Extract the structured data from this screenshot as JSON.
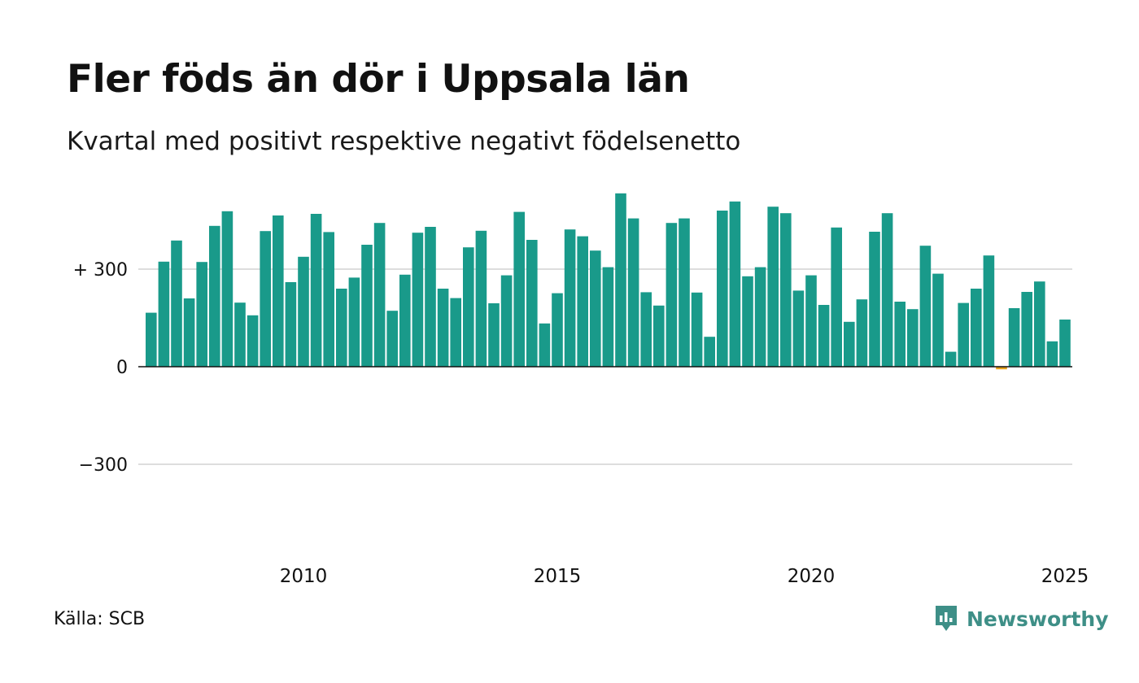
{
  "title": "Fler föds än dör i Uppsala län",
  "subtitle": "Kvartal med positivt respektive negativt födelsenetto",
  "source": "Källa: SCB",
  "brand": {
    "name": "Newsworthy",
    "icon": "newsworthy-logo-icon"
  },
  "colors": {
    "positive": "#199a8a",
    "negative": "#e3a01b",
    "grid": "#dddddd",
    "baseline": "#111111",
    "brand": "#3e8f87"
  },
  "chart_data": {
    "type": "bar",
    "title": "Fler föds än dör i Uppsala län",
    "subtitle": "Kvartal med positivt respektive negativt födelsenetto",
    "xlabel": "",
    "ylabel": "",
    "ylim": [
      -300,
      520
    ],
    "grid": true,
    "start": {
      "year": 2007,
      "quarter": 1
    },
    "yticks": [
      {
        "value": 300,
        "label": "+ 300"
      },
      {
        "value": 0,
        "label": "0"
      },
      {
        "value": -300,
        "label": "−300"
      }
    ],
    "xticks": [
      {
        "year": 2010,
        "label": "2010"
      },
      {
        "year": 2015,
        "label": "2015"
      },
      {
        "year": 2020,
        "label": "2020"
      },
      {
        "year": 2025,
        "label": "2025"
      }
    ],
    "values": [
      166,
      323,
      388,
      210,
      322,
      433,
      478,
      197,
      158,
      417,
      465,
      260,
      338,
      470,
      414,
      240,
      274,
      375,
      442,
      172,
      283,
      412,
      430,
      240,
      211,
      367,
      418,
      195,
      281,
      476,
      390,
      133,
      226,
      422,
      401,
      357,
      306,
      533,
      456,
      229,
      188,
      442,
      456,
      228,
      92,
      480,
      508,
      278,
      306,
      492,
      472,
      234,
      281,
      190,
      428,
      138,
      207,
      415,
      472,
      200,
      177,
      372,
      286,
      46,
      196,
      240,
      342,
      -8,
      180,
      230,
      262,
      78,
      145
    ]
  }
}
